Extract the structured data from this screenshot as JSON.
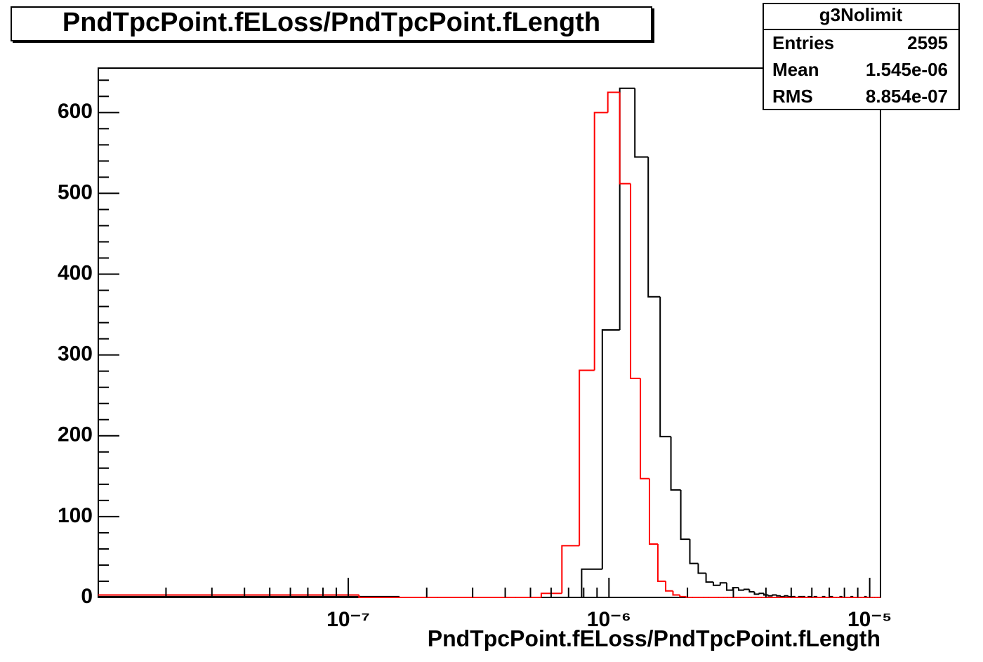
{
  "chart_data": {
    "type": "histogram",
    "title": "PndTpcPoint.fELoss/PndTpcPoint.fLength",
    "x_label": "PndTpcPoint.fELoss/PndTpcPoint.fLength",
    "log_x": true,
    "xlim": [
      1.1e-08,
      1.1e-05
    ],
    "ylim": [
      0,
      655
    ],
    "xticks": [
      {
        "value": 1e-07,
        "label": "10⁻⁷"
      },
      {
        "value": 1e-06,
        "label": "10⁻⁶"
      },
      {
        "value": 1e-05,
        "label": "10⁻⁵"
      }
    ],
    "xminorticks": [
      2e-08,
      3e-08,
      4e-08,
      5e-08,
      6e-08,
      7e-08,
      8e-08,
      9e-08,
      2e-07,
      3e-07,
      4e-07,
      5e-07,
      6e-07,
      7e-07,
      8e-07,
      9e-07,
      2e-06,
      3e-06,
      4e-06,
      5e-06,
      6e-06,
      7e-06,
      8e-06,
      9e-06
    ],
    "yticks": [
      0,
      100,
      200,
      300,
      400,
      500,
      600
    ],
    "yminorticks": [
      20,
      40,
      60,
      80,
      120,
      140,
      160,
      180,
      220,
      240,
      260,
      280,
      320,
      340,
      360,
      380,
      420,
      440,
      460,
      480,
      520,
      540,
      560,
      580,
      620,
      640
    ],
    "series": [
      {
        "name": "g3Nolimit",
        "color": "#000000",
        "bins": [
          0,
          1.5714e-07,
          3.1429e-07,
          4.7143e-07,
          6.2857e-07,
          7.8571e-07,
          9.4286e-07,
          1.1e-06,
          1.2571e-06,
          1.4143e-06,
          1.5714e-06,
          1.7286e-06,
          1.8857e-06,
          2.0429e-06,
          2.2e-06,
          2.3571e-06,
          2.5143e-06,
          2.6714e-06,
          2.8286e-06,
          2.9857e-06,
          3.1429e-06,
          3.3e-06,
          3.4571e-06,
          3.6143e-06,
          3.7714e-06,
          3.9286e-06,
          4.0857e-06,
          4.2429e-06,
          4.4e-06,
          4.5571e-06,
          4.7143e-06,
          4.8714e-06,
          5.0286e-06,
          5.1857e-06,
          5.3429e-06,
          5.5e-06,
          5.6571e-06,
          5.8143e-06,
          5.9714e-06,
          6.1286e-06,
          6.2857e-06,
          6.4429e-06,
          6.6e-06,
          6.7571e-06,
          6.9143e-06,
          7.0714e-06,
          7.2286e-06,
          7.3857e-06,
          7.5429e-06,
          7.7e-06,
          7.8571e-06,
          8.0143e-06,
          8.1714e-06,
          8.3286e-06,
          8.4857e-06,
          8.6429e-06,
          8.8e-06,
          8.9571e-06,
          9.1143e-06,
          9.2714e-06,
          9.4286e-06,
          9.5857e-06,
          9.7429e-06,
          9.9e-06,
          1.00571e-05,
          1.02143e-05,
          1.03714e-05,
          1.05286e-05,
          1.06857e-05,
          1.08429e-05,
          1.1e-05
        ],
        "values": [
          1,
          0,
          0,
          0,
          0,
          35,
          331,
          630,
          545,
          372,
          199,
          133,
          72,
          42,
          30,
          19,
          15,
          18,
          9,
          12,
          9,
          10,
          7,
          4,
          5,
          3,
          2,
          3,
          2,
          1,
          2,
          1,
          1,
          0,
          1,
          1,
          0,
          1,
          0,
          1,
          0,
          0,
          1,
          0,
          0,
          1,
          0,
          0,
          0,
          1,
          0,
          0,
          0,
          0,
          1,
          0,
          0,
          0,
          0,
          0,
          0,
          1,
          0,
          0,
          0,
          0,
          0,
          0,
          0,
          0
        ]
      },
      {
        "color": "#ff0000",
        "bins": [
          0,
          1.1e-07,
          2.2e-07,
          3.3e-07,
          4.4e-07,
          5.5e-07,
          6.6e-07,
          7.7e-07,
          8.8e-07,
          9.9e-07,
          1.1e-06,
          1.21e-06,
          1.32e-06,
          1.43e-06,
          1.54e-06,
          1.65e-06,
          1.76e-06,
          1.87e-06,
          1.98e-06,
          2.09e-06,
          2.2e-06,
          2.31e-06,
          2.42e-06,
          2.53e-06,
          2.64e-06,
          2.75e-06,
          2.86e-06,
          2.97e-06,
          3.08e-06,
          3.19e-06,
          3.3e-06,
          3.41e-06,
          3.52e-06,
          3.63e-06,
          3.74e-06,
          3.85e-06,
          3.96e-06,
          4.07e-06,
          4.18e-06,
          4.29e-06,
          4.4e-06,
          4.51e-06,
          4.62e-06,
          4.73e-06,
          4.84e-06,
          4.95e-06,
          5.06e-06,
          5.17e-06,
          5.28e-06,
          5.39e-06,
          5.5e-06,
          5.61e-06,
          5.72e-06,
          5.83e-06,
          5.94e-06,
          6.05e-06,
          6.16e-06,
          6.27e-06,
          6.38e-06,
          6.49e-06,
          6.6e-06,
          6.71e-06,
          6.82e-06,
          6.93e-06,
          7.04e-06,
          7.15e-06,
          7.26e-06,
          7.37e-06,
          7.48e-06,
          7.59e-06,
          7.7e-06,
          7.81e-06,
          7.92e-06,
          8.03e-06,
          8.14e-06,
          8.25e-06,
          8.36e-06,
          8.47e-06,
          8.58e-06,
          8.69e-06,
          8.8e-06,
          8.91e-06,
          9.02e-06,
          9.13e-06,
          9.24e-06,
          9.35e-06,
          9.46e-06,
          9.57e-06,
          9.68e-06,
          9.79e-06,
          9.9e-06,
          1.001e-05,
          1.012e-05,
          1.023e-05,
          1.034e-05,
          1.045e-05,
          1.056e-05,
          1.067e-05,
          1.078e-05,
          1.089e-05,
          1.1e-05
        ],
        "values": [
          3,
          0,
          0,
          0,
          0,
          5,
          64,
          281,
          600,
          625,
          512,
          271,
          147,
          66,
          20,
          8,
          3,
          1,
          0,
          0,
          0,
          0,
          0,
          0,
          0,
          0,
          0,
          0,
          0,
          0,
          0,
          0,
          0,
          0,
          0,
          0,
          0,
          0,
          0,
          0,
          0,
          0,
          0,
          0,
          0,
          0,
          0,
          0,
          0,
          0,
          0,
          0,
          0,
          0,
          0,
          0,
          0,
          0,
          0,
          0,
          0,
          0,
          0,
          0,
          0,
          0,
          0,
          0,
          0,
          0,
          0,
          0,
          0,
          0,
          0,
          0,
          0,
          0,
          0,
          0,
          0,
          0,
          0,
          0,
          0,
          0,
          0,
          0,
          0,
          0,
          0,
          0,
          0,
          0,
          0,
          0,
          0,
          0,
          0,
          0
        ]
      }
    ],
    "stats": {
      "title": "g3Nolimit",
      "rows": [
        [
          "Entries",
          "2595"
        ],
        [
          "Mean",
          "1.545e-06"
        ],
        [
          "RMS",
          "8.854e-07"
        ]
      ]
    }
  }
}
